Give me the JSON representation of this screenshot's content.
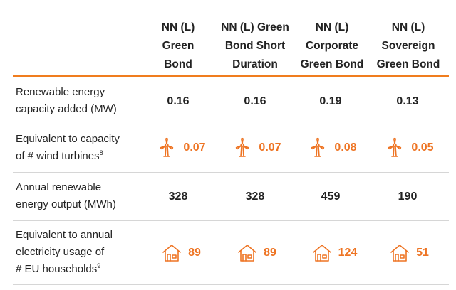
{
  "columns": [
    {
      "lines": [
        "NN (L)",
        "Green",
        "Bond"
      ]
    },
    {
      "lines": [
        "NN (L) Green",
        "Bond Short",
        "Duration"
      ]
    },
    {
      "lines": [
        "NN (L)",
        "Corporate",
        "Green Bond"
      ]
    },
    {
      "lines": [
        "NN (L)",
        "Sovereign",
        "Green Bond"
      ]
    }
  ],
  "rows": [
    {
      "label_lines": [
        "Renewable energy",
        "capacity added (MW)"
      ],
      "values": [
        "0.16",
        "0.16",
        "0.19",
        "0.13"
      ]
    },
    {
      "label_lines": [
        "Equivalent to capacity",
        "of # wind turbines"
      ],
      "label_sup": "8",
      "icon": "wind-turbine-icon",
      "values": [
        "0.07",
        "0.07",
        "0.08",
        "0.05"
      ]
    },
    {
      "label_lines": [
        "Annual renewable",
        "energy output (MWh)"
      ],
      "values": [
        "328",
        "328",
        "459",
        "190"
      ]
    },
    {
      "label_lines": [
        "Equivalent to annual",
        "electricity usage of",
        "# EU households"
      ],
      "label_sup": "9",
      "icon": "house-icon",
      "values": [
        "89",
        "89",
        "124",
        "51"
      ]
    }
  ],
  "colors": {
    "accent": "#ee7423",
    "rule": "#f07d1e",
    "divider": "#d6d6d6"
  }
}
